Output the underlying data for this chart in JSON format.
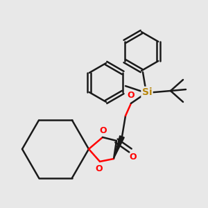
{
  "bg_color": "#e8e8e8",
  "bond_color": "#1a1a1a",
  "o_color": "#ff0000",
  "si_color": "#b8860b",
  "bond_width": 1.8,
  "figsize": [
    3.0,
    3.0
  ],
  "dpi": 100,
  "xlim": [
    0,
    300
  ],
  "ylim": [
    0,
    300
  ]
}
